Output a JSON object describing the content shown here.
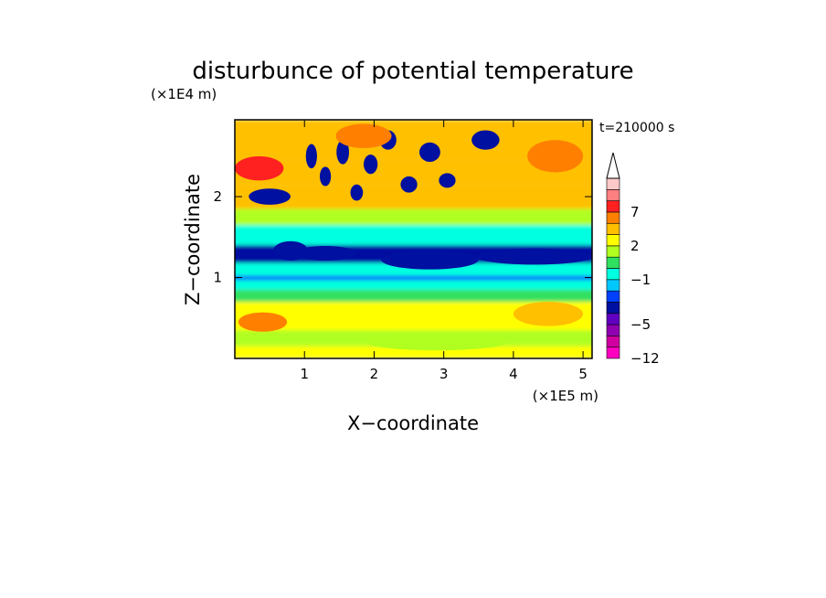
{
  "chart_data": {
    "type": "heatmap",
    "title": "disturbunce of potential temperature",
    "xlabel": "X−coordinate",
    "ylabel": "Z−coordinate",
    "x_unit": "(×1E5 m)",
    "y_unit": "(×1E4 m)",
    "time_label": "t=210000 s",
    "xlim": [
      0,
      5.13
    ],
    "ylim": [
      0,
      2.95
    ],
    "x_ticks": [
      1,
      2,
      3,
      4,
      5
    ],
    "x_tick_labels": [
      "1",
      "2",
      "3",
      "4",
      "5"
    ],
    "y_ticks": [
      1,
      2
    ],
    "y_tick_labels": [
      "1",
      "2"
    ],
    "grid": false,
    "colorbar": {
      "levels": [
        -12,
        -9,
        -7,
        -5,
        -4,
        -3,
        -2,
        -1,
        0,
        1,
        2,
        3,
        5,
        7,
        9,
        12
      ],
      "colors": [
        "#ff00c0",
        "#d000a0",
        "#9000b0",
        "#6000c0",
        "#0010a0",
        "#0040ff",
        "#00c8ff",
        "#00ffe0",
        "#30e060",
        "#b0ff20",
        "#ffff00",
        "#ffc000",
        "#ff8000",
        "#ff2020",
        "#ff8080",
        "#ffc8c8"
      ],
      "extend_top": true,
      "tick_values": [
        -12,
        -5,
        -1,
        2,
        7
      ],
      "tick_labels": [
        "−12",
        "−5",
        "−1",
        "2",
        "7"
      ]
    },
    "bands": [
      {
        "z": [
          0.0,
          0.15
        ],
        "value": 2
      },
      {
        "z": [
          0.15,
          0.35
        ],
        "value": 1
      },
      {
        "z": [
          0.35,
          0.7
        ],
        "value": 2.5
      },
      {
        "z": [
          0.7,
          0.85
        ],
        "value": 0.5
      },
      {
        "z": [
          0.85,
          0.97
        ],
        "value": -1
      },
      {
        "z": [
          0.97,
          1.02
        ],
        "value": -2.5
      },
      {
        "z": [
          1.02,
          1.18
        ],
        "value": -1
      },
      {
        "z": [
          1.18,
          1.4
        ],
        "value": -3.5
      },
      {
        "z": [
          1.4,
          1.65
        ],
        "value": -1
      },
      {
        "z": [
          1.65,
          1.85
        ],
        "value": 1.5
      },
      {
        "z": [
          1.85,
          2.15
        ],
        "value": 3
      },
      {
        "z": [
          2.15,
          2.45
        ],
        "value": 4
      },
      {
        "z": [
          2.45,
          2.95
        ],
        "value": 3.5
      }
    ],
    "blobs": [
      {
        "x": 0.35,
        "z": 2.35,
        "rx": 0.35,
        "rz": 0.15,
        "value": 8
      },
      {
        "x": 0.5,
        "z": 2.0,
        "rx": 0.3,
        "rz": 0.1,
        "value": -4
      },
      {
        "x": 0.8,
        "z": 1.33,
        "rx": 0.25,
        "rz": 0.12,
        "value": -4
      },
      {
        "x": 1.3,
        "z": 1.3,
        "rx": 0.45,
        "rz": 0.09,
        "value": -4
      },
      {
        "x": 2.8,
        "z": 1.22,
        "rx": 0.7,
        "rz": 0.12,
        "value": -4
      },
      {
        "x": 4.3,
        "z": 1.26,
        "rx": 0.85,
        "rz": 0.1,
        "value": -4
      },
      {
        "x": 1.1,
        "z": 2.5,
        "rx": 0.08,
        "rz": 0.15,
        "value": -4
      },
      {
        "x": 1.3,
        "z": 2.25,
        "rx": 0.08,
        "rz": 0.12,
        "value": -4
      },
      {
        "x": 1.55,
        "z": 2.55,
        "rx": 0.09,
        "rz": 0.15,
        "value": -4
      },
      {
        "x": 1.75,
        "z": 2.05,
        "rx": 0.09,
        "rz": 0.1,
        "value": -4
      },
      {
        "x": 1.95,
        "z": 2.4,
        "rx": 0.1,
        "rz": 0.12,
        "value": -4
      },
      {
        "x": 2.2,
        "z": 2.7,
        "rx": 0.12,
        "rz": 0.12,
        "value": -4
      },
      {
        "x": 2.5,
        "z": 2.15,
        "rx": 0.12,
        "rz": 0.1,
        "value": -4
      },
      {
        "x": 2.8,
        "z": 2.55,
        "rx": 0.15,
        "rz": 0.12,
        "value": -4
      },
      {
        "x": 3.05,
        "z": 2.2,
        "rx": 0.12,
        "rz": 0.09,
        "value": -4
      },
      {
        "x": 3.6,
        "z": 2.7,
        "rx": 0.2,
        "rz": 0.12,
        "value": -4
      },
      {
        "x": 0.4,
        "z": 0.45,
        "rx": 0.35,
        "rz": 0.12,
        "value": 5
      },
      {
        "x": 4.5,
        "z": 0.55,
        "rx": 0.5,
        "rz": 0.15,
        "value": 4
      },
      {
        "x": 2.9,
        "z": 0.2,
        "rx": 1.0,
        "rz": 0.1,
        "value": 1.5
      },
      {
        "x": 3.2,
        "z": 0.5,
        "rx": 0.6,
        "rz": 0.1,
        "value": 2
      },
      {
        "x": 4.6,
        "z": 2.5,
        "rx": 0.4,
        "rz": 0.2,
        "value": 6
      },
      {
        "x": 1.85,
        "z": 2.75,
        "rx": 0.4,
        "rz": 0.15,
        "value": 6
      }
    ]
  }
}
